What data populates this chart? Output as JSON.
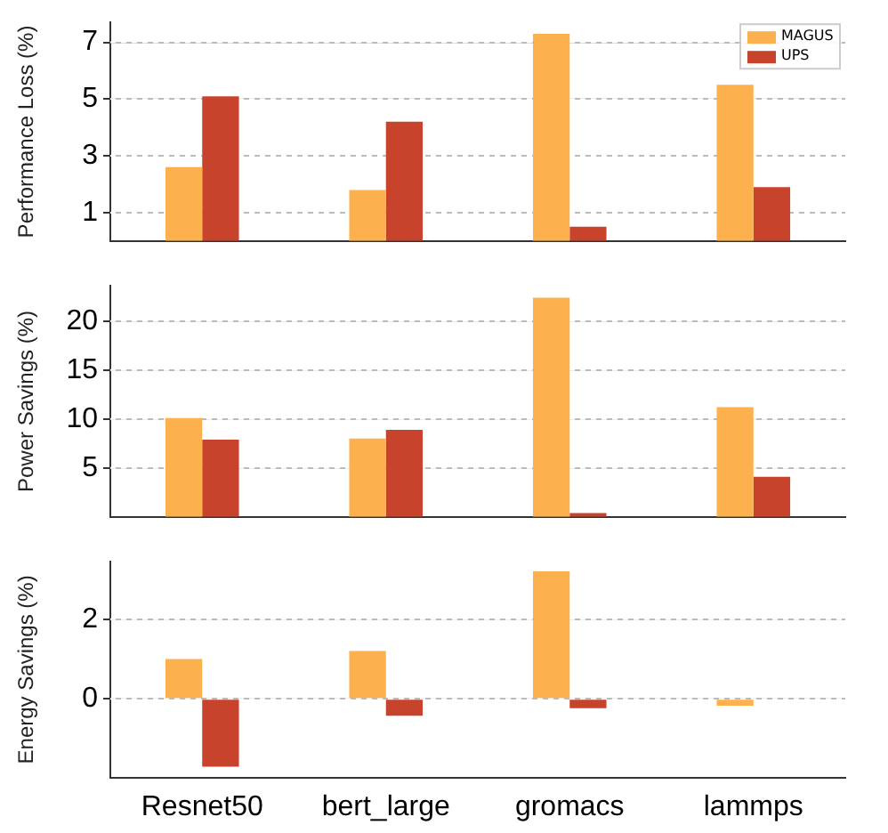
{
  "chart_data": [
    {
      "type": "bar",
      "ylabel": "Performance Loss (%)",
      "categories": [
        null,
        null,
        null,
        null
      ],
      "series": [
        {
          "name": "MAGUS",
          "color": "#fdb04e",
          "values": [
            2.6,
            1.8,
            7.3,
            5.5
          ]
        },
        {
          "name": "UPS",
          "color": "#c8432c",
          "values": [
            5.1,
            4.2,
            0.5,
            1.9
          ]
        }
      ],
      "ylim": [
        0,
        7.7
      ],
      "yticks": [
        1,
        3,
        5,
        7
      ],
      "grid": "y",
      "legend": "top right",
      "tick_labels": "y"
    },
    {
      "type": "bar",
      "ylabel": "Power Savings (%)",
      "categories": [
        null,
        null,
        null,
        null
      ],
      "series": [
        {
          "color": "#fdb04e",
          "values": [
            10.1,
            8.0,
            22.4,
            11.2
          ]
        },
        {
          "color": "#c8432c",
          "values": [
            7.9,
            8.9,
            0.4,
            4.1
          ]
        }
      ],
      "ylim": [
        0,
        23.6
      ],
      "yticks": [
        5,
        10,
        15,
        20
      ],
      "grid": "y",
      "tick_labels": "y"
    },
    {
      "type": "bar",
      "ylabel": "Energy Savings (%)",
      "categories": [
        "Resnet50",
        "bert_large",
        "gromacs",
        "lammps"
      ],
      "series": [
        {
          "color": "#fdb04e",
          "values": [
            1.0,
            1.2,
            3.2,
            -0.17
          ]
        },
        {
          "color": "#c8432c",
          "values": [
            -1.7,
            -0.42,
            -0.23,
            0
          ]
        }
      ],
      "ylim": [
        -1.97,
        3.44
      ],
      "yticks": [
        0,
        2
      ],
      "grid": "y"
    }
  ]
}
